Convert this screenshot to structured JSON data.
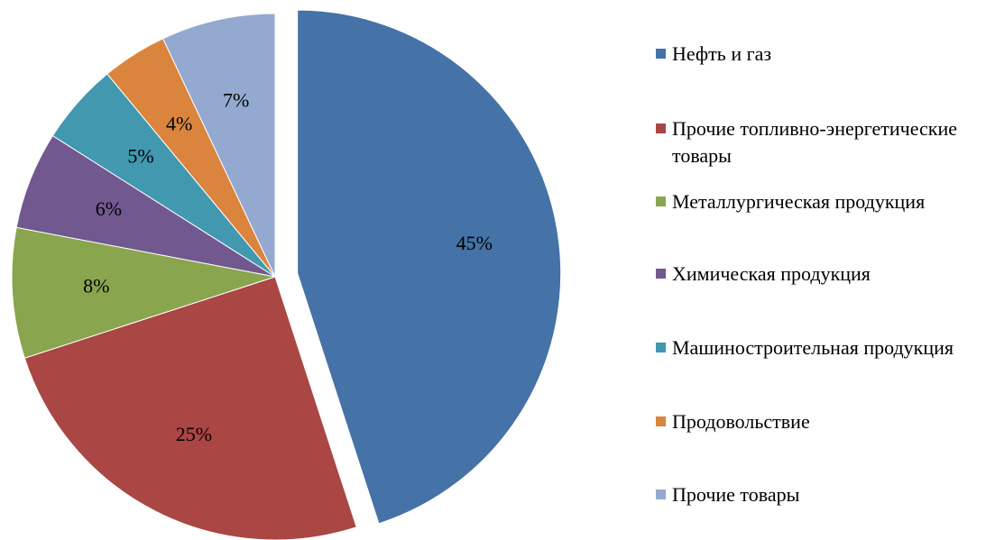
{
  "chart_data": {
    "type": "pie",
    "categories": [
      "Нефть и газ",
      "Прочие топливно-энергетические товары",
      "Металлургическая продукция",
      "Химическая продукция",
      "Машиностроительная продукция",
      "Продовольствие",
      "Прочие товары"
    ],
    "values": [
      45,
      25,
      8,
      6,
      5,
      4,
      7
    ],
    "value_labels": [
      "45%",
      "25%",
      "8%",
      "6%",
      "5%",
      "4%",
      "7%"
    ],
    "colors": [
      "#4572a7",
      "#aa4643",
      "#89a54e",
      "#71588f",
      "#4198af",
      "#db843d",
      "#93a9cf"
    ],
    "exploded": [
      0
    ],
    "legend": "right"
  }
}
